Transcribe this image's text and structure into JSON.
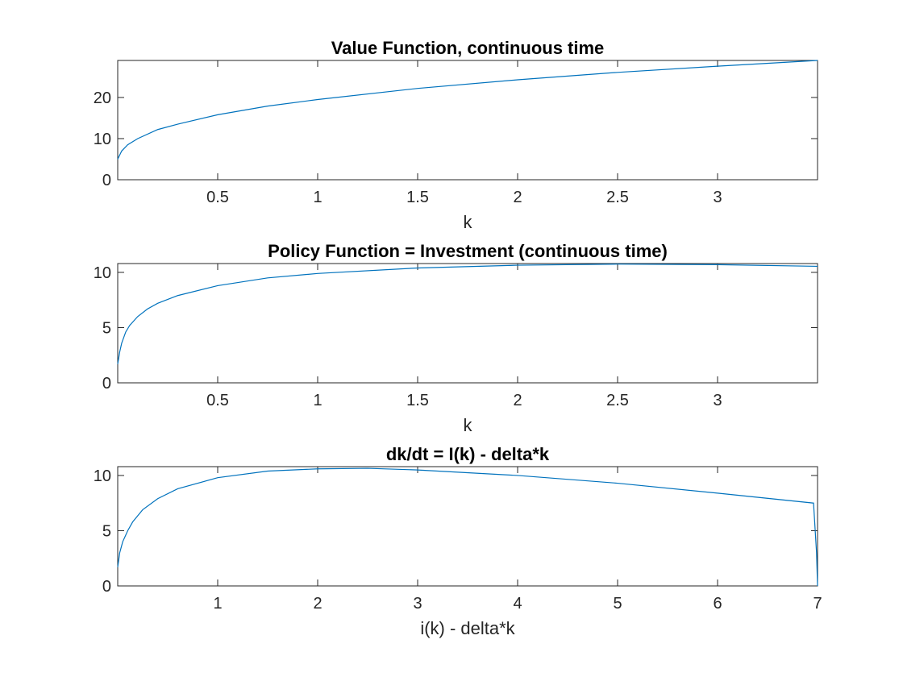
{
  "figure": {
    "background": "#ffffff",
    "line_color": "#0072BD"
  },
  "chart_data": [
    {
      "type": "line",
      "title": "Value Function, continuous time",
      "xlabel": "k",
      "ylabel": "",
      "xlim": [
        0.0,
        3.5
      ],
      "ylim": [
        0,
        29
      ],
      "xticks": [
        0.5,
        1,
        1.5,
        2,
        2.5,
        3
      ],
      "xtick_labels": [
        "0.5",
        "1",
        "1.5",
        "2",
        "2.5",
        "3"
      ],
      "yticks": [
        0,
        10,
        20
      ],
      "ytick_labels": [
        "0",
        "10",
        "20"
      ],
      "grid": false,
      "series": [
        {
          "name": "value function",
          "x": [
            0.0,
            0.02,
            0.05,
            0.1,
            0.2,
            0.3,
            0.5,
            0.75,
            1.0,
            1.5,
            2.0,
            2.5,
            3.0,
            3.5
          ],
          "y": [
            5.0,
            7.0,
            8.5,
            10.0,
            12.2,
            13.5,
            15.8,
            17.9,
            19.5,
            22.2,
            24.3,
            26.1,
            27.6,
            29.0
          ]
        }
      ]
    },
    {
      "type": "line",
      "title": "Policy Function = Investment (continuous time)",
      "xlabel": "k",
      "ylabel": "",
      "xlim": [
        0.0,
        3.5
      ],
      "ylim": [
        0,
        10.8
      ],
      "xticks": [
        0.5,
        1,
        1.5,
        2,
        2.5,
        3
      ],
      "xtick_labels": [
        "0.5",
        "1",
        "1.5",
        "2",
        "2.5",
        "3"
      ],
      "yticks": [
        0,
        5,
        10
      ],
      "ytick_labels": [
        "0",
        "5",
        "10"
      ],
      "grid": false,
      "series": [
        {
          "name": "investment",
          "x": [
            0.0,
            0.01,
            0.02,
            0.04,
            0.06,
            0.1,
            0.15,
            0.2,
            0.3,
            0.5,
            0.75,
            1.0,
            1.5,
            2.0,
            2.5,
            3.0,
            3.5
          ],
          "y": [
            1.7,
            2.8,
            3.6,
            4.6,
            5.2,
            6.0,
            6.7,
            7.2,
            7.9,
            8.8,
            9.5,
            9.9,
            10.4,
            10.65,
            10.75,
            10.7,
            10.55
          ]
        }
      ]
    },
    {
      "type": "line",
      "title": "dk/dt  = I(k) - delta*k",
      "xlabel": "i(k) - delta*k",
      "ylabel": "",
      "xlim": [
        0.0,
        7.0
      ],
      "ylim": [
        0,
        10.8
      ],
      "xticks": [
        1,
        2,
        3,
        4,
        5,
        6,
        7
      ],
      "xtick_labels": [
        "1",
        "2",
        "3",
        "4",
        "5",
        "6",
        "7"
      ],
      "yticks": [
        0,
        5,
        10
      ],
      "ytick_labels": [
        "0",
        "5",
        "10"
      ],
      "grid": false,
      "series": [
        {
          "name": "dk/dt",
          "x": [
            0.0,
            0.02,
            0.05,
            0.1,
            0.15,
            0.25,
            0.4,
            0.6,
            1.0,
            1.5,
            2.0,
            2.5,
            3.0,
            4.0,
            5.0,
            6.0,
            6.96,
            6.99,
            7.0
          ],
          "y": [
            1.7,
            3.0,
            4.0,
            5.0,
            5.8,
            6.9,
            7.9,
            8.8,
            9.8,
            10.4,
            10.6,
            10.65,
            10.5,
            10.0,
            9.3,
            8.4,
            7.5,
            3.0,
            0.0
          ]
        }
      ]
    }
  ]
}
